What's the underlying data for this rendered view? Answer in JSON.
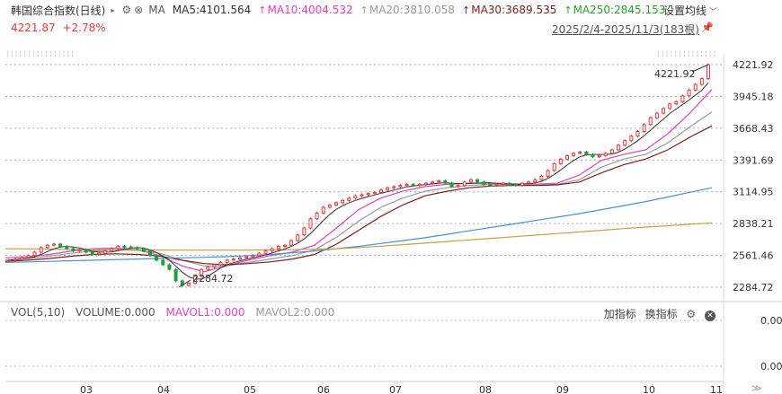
{
  "header": {
    "index_name": "韩国综合指数(日线)",
    "ma_label": "MA",
    "setting_label": "设置均线"
  },
  "ma_legend": [
    {
      "label": "MA5:4101.564",
      "color": "#333333",
      "arrow": ""
    },
    {
      "label": "MA10:4004.532",
      "color": "#e040c0",
      "arrow": "↑"
    },
    {
      "label": "MA20:3810.058",
      "color": "#9a9a9a",
      "arrow": "↑"
    },
    {
      "label": "MA30:3689.535",
      "color": "#7a1f1f",
      "arrow": "↑"
    },
    {
      "label": "MA250:2845.153",
      "color": "#2e9e2e",
      "arrow": "↑"
    }
  ],
  "quote": {
    "price": "4221.87",
    "change": "+2.78%"
  },
  "date_range": "2025/2/4-2025/11/3(183根)",
  "price_axis": [
    "4221.92",
    "3945.18",
    "3668.43",
    "3391.69",
    "3114.95",
    "2838.21",
    "2561.46",
    "2284.72"
  ],
  "annotations": {
    "high": "4221.92",
    "low": "2284.72"
  },
  "volume": {
    "vol_label": "VOL(5,10)",
    "volume_value": "VOLUME:0.000",
    "mavol1": "MAVOL1:0.000",
    "mavol2": "MAVOL2:0.000",
    "add_indicator": "加指标",
    "switch_indicator": "换指标",
    "axis": [
      "0.00",
      "0.00"
    ]
  },
  "month_labels": [
    "03",
    "04",
    "05",
    "06",
    "07",
    "08",
    "09",
    "10",
    "11"
  ],
  "colors": {
    "up": "#e23c3c",
    "down": "#1f9e3a",
    "ma5": "#333333",
    "ma10": "#e040c0",
    "ma20": "#9a9a9a",
    "ma30": "#7a1f1f",
    "ma120": "#4a90d9",
    "ma250": "#c8a040"
  },
  "chart_data": {
    "type": "candlestick",
    "ylim": [
      2284.72,
      4221.92
    ],
    "months": [
      "03",
      "04",
      "05",
      "06",
      "07",
      "08",
      "09",
      "10",
      "11"
    ],
    "closes": [
      2520,
      2530,
      2545,
      2560,
      2590,
      2630,
      2650,
      2660,
      2640,
      2620,
      2600,
      2610,
      2590,
      2570,
      2580,
      2600,
      2620,
      2640,
      2635,
      2630,
      2620,
      2600,
      2560,
      2520,
      2480,
      2440,
      2340,
      2300,
      2320,
      2380,
      2440,
      2460,
      2480,
      2500,
      2520,
      2530,
      2540,
      2550,
      2560,
      2580,
      2600,
      2620,
      2640,
      2650,
      2690,
      2740,
      2800,
      2880,
      2930,
      2980,
      3000,
      3020,
      3040,
      3060,
      3080,
      3090,
      3100,
      3110,
      3130,
      3150,
      3160,
      3170,
      3180,
      3170,
      3180,
      3190,
      3200,
      3210,
      3190,
      3160,
      3170,
      3200,
      3220,
      3200,
      3180,
      3170,
      3180,
      3190,
      3180,
      3170,
      3190,
      3200,
      3220,
      3250,
      3300,
      3360,
      3400,
      3430,
      3450,
      3460,
      3440,
      3420,
      3430,
      3450,
      3480,
      3520,
      3560,
      3600,
      3640,
      3700,
      3760,
      3800,
      3840,
      3880,
      3900,
      3950,
      4000,
      4050,
      4100,
      4221.87
    ],
    "ma_series": [
      {
        "name": "MA10",
        "values": [
          2540,
          2550,
          2570,
          2600,
          2620,
          2625,
          2610,
          2560,
          2470,
          2420,
          2470,
          2520,
          2560,
          2590,
          2650,
          2800,
          2960,
          3060,
          3120,
          3160,
          3180,
          3190,
          3190,
          3185,
          3180,
          3190,
          3260,
          3390,
          3440,
          3480,
          3620,
          3800,
          4004.532
        ]
      },
      {
        "name": "MA20",
        "values": [
          2520,
          2535,
          2555,
          2580,
          2600,
          2610,
          2605,
          2580,
          2520,
          2470,
          2470,
          2500,
          2530,
          2560,
          2610,
          2720,
          2860,
          2980,
          3060,
          3120,
          3150,
          3170,
          3180,
          3180,
          3175,
          3180,
          3220,
          3330,
          3400,
          3440,
          3540,
          3680,
          3810.058
        ]
      },
      {
        "name": "MA30",
        "values": [
          2510,
          2520,
          2535,
          2555,
          2570,
          2575,
          2570,
          2555,
          2520,
          2490,
          2480,
          2490,
          2505,
          2530,
          2570,
          2660,
          2780,
          2900,
          3000,
          3080,
          3120,
          3150,
          3165,
          3170,
          3170,
          3175,
          3200,
          3280,
          3350,
          3400,
          3480,
          3590,
          3689.535
        ]
      },
      {
        "name": "MA120",
        "values": [
          2500,
          2505,
          2510,
          2515,
          2520,
          2525,
          2530,
          2535,
          2540,
          2545,
          2550,
          2560,
          2570,
          2585,
          2600,
          2620,
          2640,
          2665,
          2690,
          2715,
          2745,
          2775,
          2805,
          2835,
          2865,
          2895,
          2925,
          2960,
          2995,
          3030,
          3070,
          3110,
          3150
        ]
      },
      {
        "name": "MA250",
        "values": [
          2620,
          2618,
          2616,
          2614,
          2612,
          2610,
          2609,
          2608,
          2607,
          2607,
          2607,
          2608,
          2610,
          2612,
          2615,
          2620,
          2630,
          2642,
          2655,
          2668,
          2682,
          2696,
          2710,
          2724,
          2738,
          2752,
          2766,
          2780,
          2795,
          2808,
          2820,
          2832,
          2845.153
        ]
      }
    ]
  }
}
